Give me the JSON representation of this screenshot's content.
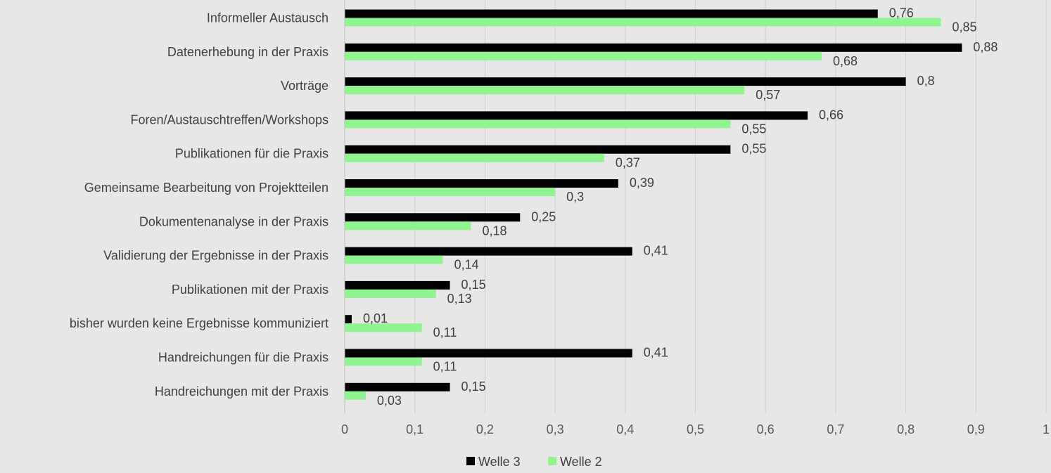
{
  "chart_data": {
    "type": "bar",
    "orientation": "horizontal",
    "categories": [
      "Informeller Austausch",
      "Datenerhebung in der Praxis",
      "Vorträge",
      "Foren/Austauschtreffen/Workshops",
      "Publikationen für die Praxis",
      "Gemeinsame Bearbeitung von Projektteilen",
      "Dokumentenanalyse in der Praxis",
      "Validierung der Ergebnisse in der Praxis",
      "Publikationen mit der Praxis",
      "bisher wurden keine Ergebnisse kommuniziert",
      "Handreichungen für die Praxis",
      "Handreichungen mit der Praxis"
    ],
    "series": [
      {
        "name": "Welle 3",
        "color": "#000000",
        "values": [
          0.76,
          0.88,
          0.8,
          0.66,
          0.55,
          0.39,
          0.25,
          0.41,
          0.15,
          0.01,
          0.41,
          0.15
        ],
        "labels": [
          "0,76",
          "0,88",
          "0,8",
          "0,66",
          "0,55",
          "0,39",
          "0,25",
          "0,41",
          "0,15",
          "0,01",
          "0,41",
          "0,15"
        ]
      },
      {
        "name": "Welle 2",
        "color": "#90f590",
        "values": [
          0.85,
          0.68,
          0.57,
          0.55,
          0.37,
          0.3,
          0.18,
          0.14,
          0.13,
          0.11,
          0.11,
          0.03
        ],
        "labels": [
          "0,85",
          "0,68",
          "0,57",
          "0,55",
          "0,37",
          "0,3",
          "0,18",
          "0,14",
          "0,13",
          "0,11",
          "0,11",
          "0,03"
        ]
      }
    ],
    "xlim": [
      0,
      1
    ],
    "x_ticks": [
      0,
      0.1,
      0.2,
      0.3,
      0.4,
      0.5,
      0.6,
      0.7,
      0.8,
      0.9,
      1
    ],
    "x_tick_labels": [
      "0",
      "0,1",
      "0,2",
      "0,3",
      "0,4",
      "0,5",
      "0,6",
      "0,7",
      "0,8",
      "0,9",
      "1"
    ],
    "grid": true,
    "legend": "bottom-center",
    "title": "",
    "xlabel": "",
    "ylabel": ""
  }
}
